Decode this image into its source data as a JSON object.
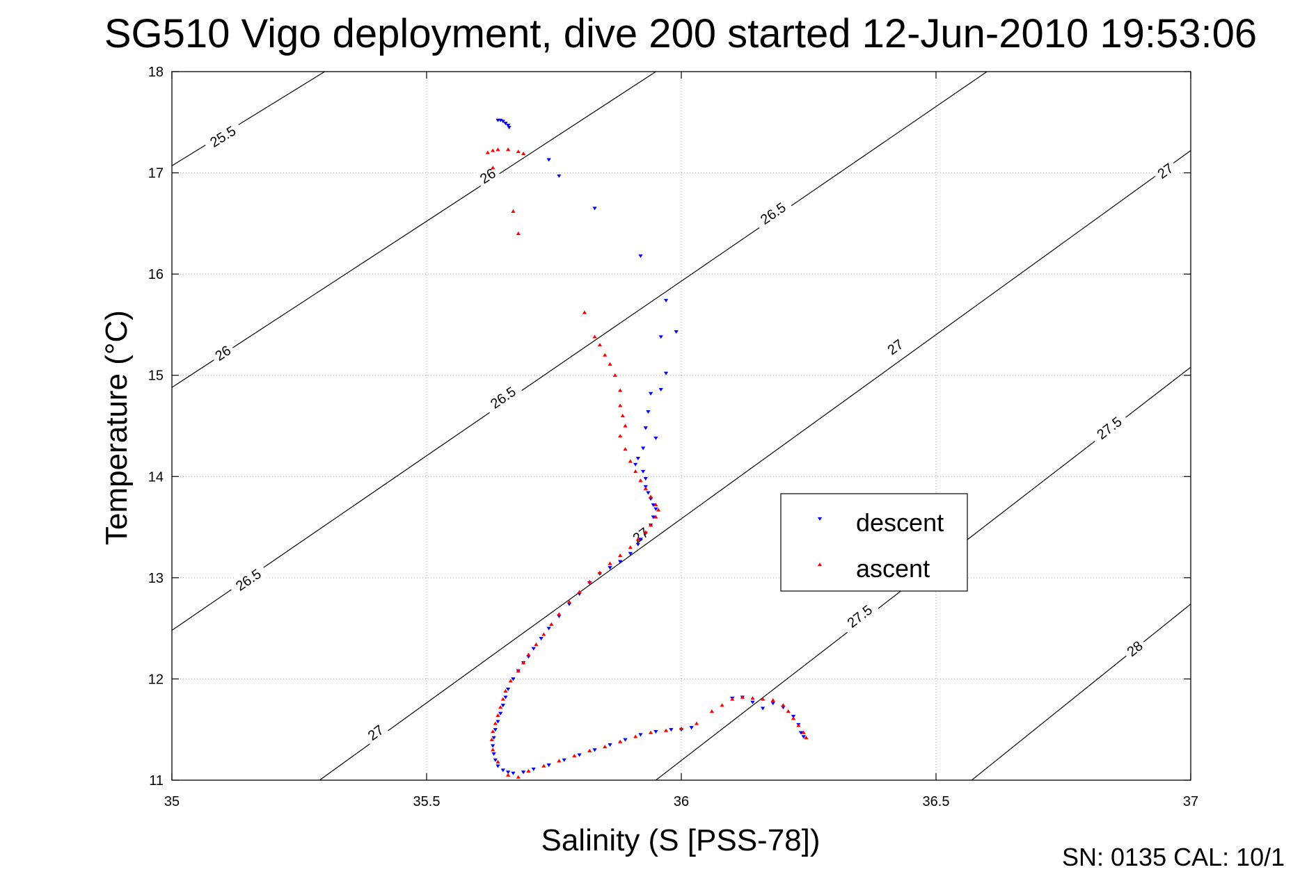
{
  "chart_data": {
    "type": "scatter",
    "title": "SG510 Vigo deployment, dive 200 started 12-Jun-2010 19:53:06",
    "xlabel": "Salinity (S [PSS-78])",
    "ylabel": "Temperature (°C)",
    "xlim": [
      35,
      37
    ],
    "ylim": [
      11,
      18
    ],
    "x_ticks": [
      "35",
      "35.5",
      "36",
      "36.5",
      "37"
    ],
    "y_ticks": [
      "11",
      "12",
      "13",
      "14",
      "15",
      "16",
      "17",
      "18"
    ],
    "grid": true,
    "legend_position": "right-center",
    "series": [
      {
        "name": "descent",
        "marker": "triangle-down",
        "color": "#0000ff",
        "points": [
          [
            35.64,
            17.52
          ],
          [
            35.645,
            17.52
          ],
          [
            35.65,
            17.51
          ],
          [
            35.655,
            17.49
          ],
          [
            35.66,
            17.47
          ],
          [
            35.662,
            17.45
          ],
          [
            35.74,
            17.13
          ],
          [
            35.76,
            16.97
          ],
          [
            35.83,
            16.65
          ],
          [
            35.92,
            16.18
          ],
          [
            35.97,
            15.74
          ],
          [
            35.99,
            15.43
          ],
          [
            35.96,
            15.38
          ],
          [
            35.97,
            15.02
          ],
          [
            35.96,
            14.86
          ],
          [
            35.94,
            14.82
          ],
          [
            35.935,
            14.64
          ],
          [
            35.93,
            14.48
          ],
          [
            35.95,
            14.38
          ],
          [
            35.925,
            14.28
          ],
          [
            35.915,
            14.18
          ],
          [
            35.91,
            14.12
          ],
          [
            35.925,
            14.05
          ],
          [
            35.93,
            13.98
          ],
          [
            35.93,
            13.9
          ],
          [
            35.935,
            13.84
          ],
          [
            35.94,
            13.78
          ],
          [
            35.945,
            13.72
          ],
          [
            35.95,
            13.68
          ],
          [
            35.945,
            13.6
          ],
          [
            35.94,
            13.52
          ],
          [
            35.93,
            13.44
          ],
          [
            35.92,
            13.38
          ],
          [
            35.915,
            13.33
          ],
          [
            35.9,
            13.24
          ],
          [
            35.88,
            13.16
          ],
          [
            35.86,
            13.1
          ],
          [
            35.84,
            13.04
          ],
          [
            35.82,
            12.95
          ],
          [
            35.8,
            12.84
          ],
          [
            35.78,
            12.74
          ],
          [
            35.76,
            12.62
          ],
          [
            35.74,
            12.5
          ],
          [
            35.725,
            12.4
          ],
          [
            35.71,
            12.3
          ],
          [
            35.7,
            12.22
          ],
          [
            35.69,
            12.16
          ],
          [
            35.68,
            12.08
          ],
          [
            35.67,
            12.0
          ],
          [
            35.66,
            11.9
          ],
          [
            35.655,
            11.82
          ],
          [
            35.65,
            11.74
          ],
          [
            35.645,
            11.66
          ],
          [
            35.64,
            11.58
          ],
          [
            35.635,
            11.5
          ],
          [
            35.632,
            11.42
          ],
          [
            35.63,
            11.34
          ],
          [
            35.632,
            11.26
          ],
          [
            35.635,
            11.2
          ],
          [
            35.64,
            11.14
          ],
          [
            35.65,
            11.1
          ],
          [
            35.66,
            11.08
          ],
          [
            35.67,
            11.07
          ],
          [
            35.69,
            11.08
          ],
          [
            35.71,
            11.11
          ],
          [
            35.74,
            11.15
          ],
          [
            35.77,
            11.2
          ],
          [
            35.8,
            11.25
          ],
          [
            35.83,
            11.3
          ],
          [
            35.86,
            11.35
          ],
          [
            35.89,
            11.4
          ],
          [
            35.92,
            11.45
          ],
          [
            35.95,
            11.48
          ],
          [
            35.98,
            11.5
          ],
          [
            36.0,
            11.5
          ],
          [
            36.02,
            11.52
          ],
          [
            36.1,
            11.81
          ],
          [
            36.12,
            11.82
          ],
          [
            36.14,
            11.77
          ],
          [
            36.16,
            11.71
          ],
          [
            36.18,
            11.76
          ],
          [
            36.2,
            11.72
          ],
          [
            36.22,
            11.63
          ],
          [
            36.23,
            11.55
          ],
          [
            36.235,
            11.47
          ],
          [
            36.24,
            11.43
          ]
        ]
      },
      {
        "name": "ascent",
        "marker": "triangle-up",
        "color": "#ff0000",
        "points": [
          [
            35.62,
            17.2
          ],
          [
            35.63,
            17.22
          ],
          [
            35.64,
            17.23
          ],
          [
            35.66,
            17.23
          ],
          [
            35.68,
            17.21
          ],
          [
            35.69,
            17.19
          ],
          [
            35.63,
            17.05
          ],
          [
            35.67,
            16.62
          ],
          [
            35.68,
            16.4
          ],
          [
            35.81,
            15.62
          ],
          [
            35.83,
            15.38
          ],
          [
            35.84,
            15.3
          ],
          [
            35.85,
            15.2
          ],
          [
            35.86,
            15.11
          ],
          [
            35.87,
            15.0
          ],
          [
            35.88,
            14.85
          ],
          [
            35.88,
            14.7
          ],
          [
            35.885,
            14.6
          ],
          [
            35.89,
            14.5
          ],
          [
            35.88,
            14.4
          ],
          [
            35.89,
            14.27
          ],
          [
            35.9,
            14.15
          ],
          [
            35.91,
            14.05
          ],
          [
            35.92,
            13.96
          ],
          [
            35.93,
            13.88
          ],
          [
            35.94,
            13.8
          ],
          [
            35.95,
            13.72
          ],
          [
            35.955,
            13.67
          ],
          [
            35.95,
            13.6
          ],
          [
            35.94,
            13.52
          ],
          [
            35.93,
            13.45
          ],
          [
            35.915,
            13.38
          ],
          [
            35.9,
            13.3
          ],
          [
            35.88,
            13.22
          ],
          [
            35.86,
            13.14
          ],
          [
            35.84,
            13.05
          ],
          [
            35.82,
            12.96
          ],
          [
            35.8,
            12.86
          ],
          [
            35.78,
            12.76
          ],
          [
            35.76,
            12.64
          ],
          [
            35.745,
            12.54
          ],
          [
            35.73,
            12.44
          ],
          [
            35.715,
            12.34
          ],
          [
            35.7,
            12.24
          ],
          [
            35.69,
            12.16
          ],
          [
            35.68,
            12.08
          ],
          [
            35.665,
            11.98
          ],
          [
            35.655,
            11.88
          ],
          [
            35.65,
            11.8
          ],
          [
            35.645,
            11.72
          ],
          [
            35.64,
            11.64
          ],
          [
            35.635,
            11.56
          ],
          [
            35.63,
            11.48
          ],
          [
            35.628,
            11.4
          ],
          [
            35.63,
            11.3
          ],
          [
            35.64,
            11.18
          ],
          [
            35.66,
            11.05
          ],
          [
            35.68,
            11.03
          ],
          [
            35.7,
            11.09
          ],
          [
            35.73,
            11.14
          ],
          [
            35.76,
            11.19
          ],
          [
            35.79,
            11.24
          ],
          [
            35.82,
            11.29
          ],
          [
            35.85,
            11.33
          ],
          [
            35.88,
            11.38
          ],
          [
            35.91,
            11.43
          ],
          [
            35.94,
            11.47
          ],
          [
            35.97,
            11.49
          ],
          [
            36.0,
            11.51
          ],
          [
            36.03,
            11.56
          ],
          [
            36.06,
            11.68
          ],
          [
            36.08,
            11.74
          ],
          [
            36.1,
            11.8
          ],
          [
            36.12,
            11.82
          ],
          [
            36.14,
            11.81
          ],
          [
            36.16,
            11.8
          ],
          [
            36.18,
            11.79
          ],
          [
            36.2,
            11.74
          ],
          [
            36.21,
            11.68
          ],
          [
            36.22,
            11.61
          ],
          [
            36.23,
            11.54
          ],
          [
            36.24,
            11.47
          ],
          [
            36.245,
            11.42
          ]
        ]
      }
    ],
    "density_contours": [
      {
        "sigma": "25.5",
        "points": [
          [
            35.0,
            17.07
          ],
          [
            35.3,
            18.0
          ]
        ],
        "label_at": [
          35.1,
          17.36
        ]
      },
      {
        "sigma": "26",
        "points": [
          [
            35.0,
            14.88
          ],
          [
            35.95,
            18.0
          ]
        ],
        "label_at": [
          35.1,
          15.22
        ]
      },
      {
        "sigma": "26",
        "points": [
          [
            35.0,
            14.88
          ],
          [
            35.95,
            18.0
          ]
        ],
        "label_at": [
          35.62,
          16.97
        ]
      },
      {
        "sigma": "26.5",
        "points": [
          [
            35.0,
            12.48
          ],
          [
            36.6,
            18.0
          ]
        ],
        "label_at": [
          35.15,
          12.98
        ]
      },
      {
        "sigma": "26.5",
        "points": [
          [
            35.0,
            12.48
          ],
          [
            36.6,
            18.0
          ]
        ],
        "label_at": [
          35.65,
          14.78
        ]
      },
      {
        "sigma": "26.5",
        "points": [
          [
            35.0,
            12.48
          ],
          [
            36.6,
            18.0
          ]
        ],
        "label_at": [
          36.18,
          16.6
        ]
      },
      {
        "sigma": "27",
        "points": [
          [
            35.29,
            11.0
          ],
          [
            37.0,
            17.22
          ]
        ],
        "label_at": [
          35.4,
          11.47
        ]
      },
      {
        "sigma": "27",
        "points": [
          [
            35.29,
            11.0
          ],
          [
            37.0,
            17.22
          ]
        ],
        "label_at": [
          35.92,
          13.42
        ]
      },
      {
        "sigma": "27",
        "points": [
          [
            35.29,
            11.0
          ],
          [
            37.0,
            17.22
          ]
        ],
        "label_at": [
          36.42,
          15.28
        ]
      },
      {
        "sigma": "27",
        "points": [
          [
            35.29,
            11.0
          ],
          [
            37.0,
            17.22
          ]
        ],
        "label_at": [
          36.95,
          17.02
        ]
      },
      {
        "sigma": "27.5",
        "points": [
          [
            35.95,
            11.0
          ],
          [
            37.0,
            15.08
          ]
        ],
        "label_at": [
          36.35,
          12.62
        ]
      },
      {
        "sigma": "27.5",
        "points": [
          [
            35.95,
            11.0
          ],
          [
            37.0,
            15.08
          ]
        ],
        "label_at": [
          36.84,
          14.48
        ]
      },
      {
        "sigma": "28",
        "points": [
          [
            36.57,
            11.0
          ],
          [
            37.0,
            12.74
          ]
        ],
        "label_at": [
          36.89,
          12.3
        ]
      }
    ]
  },
  "footer": {
    "text": "SN: 0135  CAL: 10/1"
  }
}
